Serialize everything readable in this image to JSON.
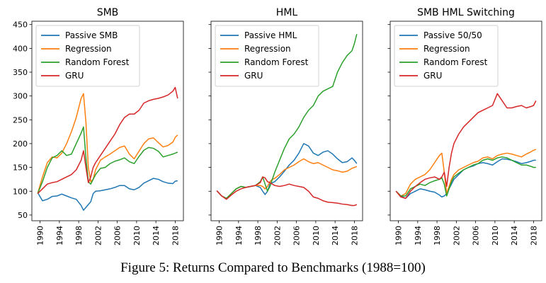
{
  "caption": "Figure 5: Returns Compared to Benchmarks (1988=100)",
  "chart_data": [
    {
      "type": "line",
      "title": "SMB",
      "xlabel": "",
      "ylabel": "",
      "xlim": [
        1988.3,
        2019.7
      ],
      "ylim": [
        38,
        457
      ],
      "xticks": [
        1990,
        1994,
        1998,
        2002,
        2006,
        2010,
        2014,
        2018
      ],
      "yticks": [
        50,
        100,
        150,
        200,
        250,
        300,
        350,
        400,
        450
      ],
      "legend_position": "upper-left",
      "x": [
        1989.5,
        1990.5,
        1991.5,
        1992.5,
        1993.5,
        1994.5,
        1995.5,
        1996.5,
        1997.5,
        1998.5,
        1999.0,
        1999.5,
        2000.0,
        2000.5,
        2001.0,
        2001.5,
        2002.5,
        2003.5,
        2004.5,
        2005.5,
        2006.5,
        2007.5,
        2008.5,
        2009.5,
        2010.5,
        2011.5,
        2012.5,
        2013.5,
        2014.5,
        2015.5,
        2016.5,
        2017.5,
        2018.0,
        2018.5
      ],
      "series": [
        {
          "name": "Passive SMB",
          "color": "#1f77b4",
          "values": [
            97,
            80,
            83,
            89,
            90,
            94,
            90,
            86,
            83,
            70,
            60,
            66,
            72,
            78,
            95,
            100,
            101,
            103,
            105,
            108,
            112,
            112,
            105,
            103,
            108,
            117,
            122,
            127,
            125,
            120,
            117,
            116,
            121,
            122
          ]
        },
        {
          "name": "Regression",
          "color": "#ff7f0e",
          "values": [
            95,
            130,
            160,
            172,
            170,
            180,
            200,
            225,
            255,
            295,
            305,
            245,
            150,
            120,
            125,
            145,
            165,
            172,
            178,
            185,
            192,
            195,
            178,
            168,
            184,
            200,
            210,
            212,
            202,
            193,
            196,
            203,
            213,
            218
          ]
        },
        {
          "name": "Random Forest",
          "color": "#2ca02c",
          "values": [
            95,
            120,
            150,
            170,
            175,
            185,
            175,
            178,
            200,
            222,
            235,
            170,
            120,
            115,
            125,
            135,
            148,
            150,
            158,
            163,
            166,
            170,
            162,
            158,
            173,
            186,
            192,
            190,
            184,
            172,
            175,
            178,
            180,
            182
          ]
        },
        {
          "name": "GRU",
          "color": "#d62728",
          "values": [
            95,
            105,
            115,
            118,
            120,
            125,
            130,
            135,
            145,
            165,
            185,
            150,
            118,
            130,
            150,
            160,
            175,
            190,
            205,
            220,
            240,
            255,
            262,
            262,
            270,
            285,
            290,
            293,
            295,
            298,
            302,
            310,
            318,
            295
          ]
        }
      ]
    },
    {
      "type": "line",
      "title": "HML",
      "xlabel": "",
      "ylabel": "",
      "xlim": [
        1988.3,
        2019.7
      ],
      "ylim": [
        38,
        457
      ],
      "xticks": [
        1990,
        1994,
        1998,
        2002,
        2006,
        2010,
        2014,
        2018
      ],
      "yticks": [
        50,
        100,
        150,
        200,
        250,
        300,
        350,
        400,
        450
      ],
      "legend_position": "upper-left",
      "x": [
        1989.5,
        1990.5,
        1991.5,
        1992.5,
        1993.5,
        1994.5,
        1995.5,
        1996.5,
        1997.5,
        1998.5,
        1999.0,
        1999.5,
        2000.0,
        2000.5,
        2001.0,
        2001.5,
        2002.5,
        2003.5,
        2004.5,
        2005.5,
        2006.5,
        2007.5,
        2008.5,
        2009.5,
        2010.5,
        2011.5,
        2012.5,
        2013.5,
        2014.5,
        2015.5,
        2016.5,
        2017.5,
        2018.0,
        2018.5
      ],
      "series": [
        {
          "name": "Passive HML",
          "color": "#1f77b4",
          "values": [
            101,
            90,
            85,
            95,
            105,
            110,
            108,
            110,
            112,
            108,
            100,
            93,
            100,
            115,
            118,
            120,
            130,
            142,
            155,
            165,
            180,
            200,
            195,
            180,
            175,
            182,
            185,
            178,
            168,
            160,
            162,
            170,
            165,
            158
          ]
        },
        {
          "name": "Regression",
          "color": "#ff7f0e",
          "values": [
            101,
            90,
            85,
            95,
            105,
            110,
            108,
            110,
            112,
            112,
            110,
            105,
            110,
            120,
            125,
            127,
            135,
            145,
            150,
            155,
            162,
            168,
            162,
            158,
            160,
            155,
            150,
            145,
            143,
            140,
            142,
            148,
            150,
            152
          ]
        },
        {
          "name": "Random Forest",
          "color": "#2ca02c",
          "values": [
            101,
            90,
            85,
            95,
            105,
            110,
            108,
            110,
            112,
            120,
            130,
            115,
            100,
            110,
            125,
            140,
            165,
            190,
            210,
            220,
            235,
            255,
            270,
            280,
            300,
            310,
            315,
            320,
            350,
            370,
            385,
            395,
            410,
            430
          ]
        },
        {
          "name": "GRU",
          "color": "#d62728",
          "values": [
            101,
            90,
            83,
            92,
            100,
            105,
            108,
            110,
            112,
            118,
            130,
            128,
            120,
            118,
            115,
            112,
            110,
            112,
            115,
            112,
            110,
            108,
            100,
            88,
            85,
            80,
            77,
            76,
            75,
            73,
            72,
            70,
            70,
            72
          ]
        }
      ]
    },
    {
      "type": "line",
      "title": "SMB HML Switching",
      "xlabel": "",
      "ylabel": "",
      "xlim": [
        1988.3,
        2019.7
      ],
      "ylim": [
        38,
        457
      ],
      "xticks": [
        1990,
        1994,
        1998,
        2002,
        2006,
        2010,
        2014,
        2018
      ],
      "yticks": [
        50,
        100,
        150,
        200,
        250,
        300,
        350,
        400,
        450
      ],
      "legend_position": "upper-left",
      "x": [
        1989.5,
        1990.5,
        1991.5,
        1992.5,
        1993.5,
        1994.5,
        1995.5,
        1996.5,
        1997.5,
        1998.5,
        1999.0,
        1999.5,
        2000.0,
        2000.5,
        2001.0,
        2001.5,
        2002.5,
        2003.5,
        2004.5,
        2005.5,
        2006.5,
        2007.5,
        2008.5,
        2009.5,
        2010.5,
        2011.5,
        2012.5,
        2013.5,
        2014.5,
        2015.5,
        2016.5,
        2017.5,
        2018.0,
        2018.5
      ],
      "series": [
        {
          "name": "Passive 50/50",
          "color": "#1f77b4",
          "values": [
            100,
            90,
            85,
            95,
            100,
            105,
            103,
            100,
            98,
            92,
            88,
            90,
            95,
            105,
            115,
            125,
            135,
            145,
            150,
            153,
            158,
            160,
            158,
            155,
            162,
            168,
            167,
            165,
            162,
            158,
            160,
            163,
            165,
            165
          ]
        },
        {
          "name": "Regression",
          "color": "#ff7f0e",
          "values": [
            100,
            90,
            95,
            115,
            125,
            130,
            135,
            145,
            160,
            175,
            180,
            140,
            95,
            110,
            125,
            135,
            145,
            150,
            155,
            160,
            163,
            170,
            172,
            168,
            175,
            178,
            180,
            178,
            175,
            172,
            178,
            183,
            186,
            188
          ]
        },
        {
          "name": "Random Forest",
          "color": "#2ca02c",
          "values": [
            100,
            90,
            90,
            105,
            110,
            115,
            112,
            118,
            122,
            125,
            128,
            115,
            90,
            105,
            120,
            130,
            138,
            145,
            150,
            155,
            158,
            165,
            168,
            165,
            170,
            172,
            170,
            165,
            160,
            155,
            155,
            152,
            150,
            150
          ]
        },
        {
          "name": "GRU",
          "color": "#d62728",
          "values": [
            100,
            88,
            85,
            100,
            110,
            118,
            125,
            128,
            130,
            125,
            130,
            140,
            110,
            150,
            180,
            200,
            220,
            235,
            245,
            255,
            265,
            270,
            275,
            280,
            305,
            290,
            275,
            275,
            278,
            280,
            275,
            278,
            280,
            290
          ]
        }
      ]
    }
  ]
}
